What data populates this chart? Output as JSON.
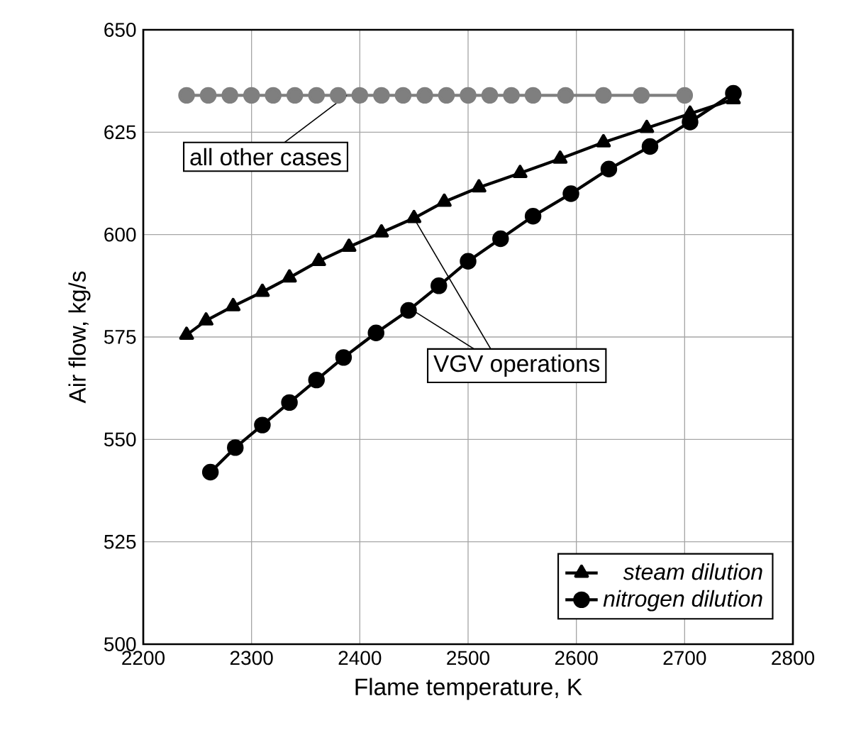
{
  "chart_data": {
    "type": "line",
    "xlabel": "Flame temperature, K",
    "ylabel": "Air flow, kg/s",
    "xlim": [
      2200,
      2800
    ],
    "ylim": [
      500,
      650
    ],
    "xticks": [
      2200,
      2300,
      2400,
      2500,
      2600,
      2700,
      2800
    ],
    "yticks": [
      500,
      525,
      550,
      575,
      600,
      625,
      650
    ],
    "grid": true,
    "legend": "bottom right",
    "series": [
      {
        "name": "steam dilution",
        "color": "#000000",
        "marker": "triangle",
        "x": [
          2240,
          2258,
          2283,
          2310,
          2335,
          2362,
          2390,
          2420,
          2450,
          2478,
          2510,
          2548,
          2585,
          2625,
          2665,
          2705,
          2745
        ],
        "values": [
          575.5,
          579,
          582.5,
          586,
          589.5,
          593.5,
          597,
          600.5,
          604,
          608,
          611.5,
          615,
          618.5,
          622.5,
          626,
          629.5,
          633
        ]
      },
      {
        "name": "nitrogen dilution",
        "color": "#000000",
        "marker": "circle",
        "x": [
          2262,
          2285,
          2310,
          2335,
          2360,
          2385,
          2415,
          2445,
          2473,
          2500,
          2530,
          2560,
          2595,
          2630,
          2668,
          2705,
          2745
        ],
        "values": [
          542,
          548,
          553.5,
          559,
          564.5,
          570,
          576,
          581.5,
          587.5,
          593.5,
          599,
          604.5,
          610,
          616,
          621.5,
          627.5,
          634.5
        ]
      },
      {
        "color": "#7f7f7f",
        "marker": "circle",
        "x": [
          2240,
          2260,
          2280,
          2300,
          2320,
          2340,
          2360,
          2380,
          2400,
          2420,
          2440,
          2460,
          2480,
          2500,
          2520,
          2540,
          2560,
          2590,
          2625,
          2660,
          2700
        ],
        "values": [
          634,
          634,
          634,
          634,
          634,
          634,
          634,
          634,
          634,
          634,
          634,
          634,
          634,
          634,
          634,
          634,
          634,
          634,
          634,
          634,
          634
        ]
      }
    ],
    "annotations": [
      {
        "text": "all other cases",
        "x": 2388,
        "y": 634
      },
      {
        "text": "VGV operations",
        "x": 2440,
        "y": 583
      }
    ]
  }
}
